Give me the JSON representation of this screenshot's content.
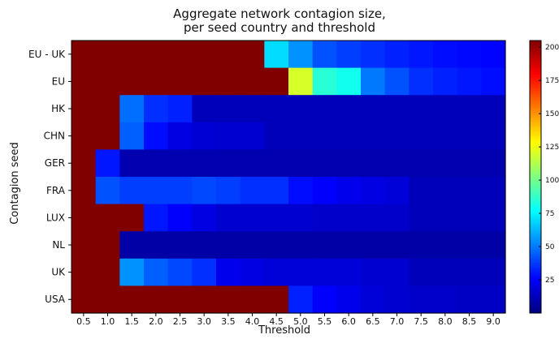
{
  "chart_data": {
    "type": "heatmap",
    "title_line1": "Aggregate network contagion size,",
    "title_line2": "per seed country and threshold",
    "xlabel": "Threshold",
    "ylabel": "Contagion seed",
    "x_tick_labels": [
      "0.5",
      "1.0",
      "1.5",
      "2.0",
      "2.5",
      "3.0",
      "3.5",
      "4.0",
      "4.5",
      "5.0",
      "5.5",
      "6.0",
      "6.5",
      "7.0",
      "7.5",
      "8.0",
      "8.5",
      "9.0"
    ],
    "rows": [
      "EU - UK",
      "EU",
      "HK",
      "CHN",
      "GER",
      "FRA",
      "LUX",
      "NL",
      "UK",
      "USA"
    ],
    "values": [
      [
        205,
        205,
        205,
        205,
        205,
        205,
        205,
        205,
        70,
        55,
        42,
        38,
        35,
        32,
        30,
        28,
        27,
        26
      ],
      [
        205,
        205,
        205,
        205,
        205,
        205,
        205,
        205,
        205,
        120,
        85,
        80,
        50,
        42,
        35,
        32,
        30,
        28
      ],
      [
        205,
        205,
        48,
        35,
        32,
        12,
        12,
        12,
        12,
        12,
        12,
        12,
        12,
        12,
        12,
        12,
        12,
        12
      ],
      [
        205,
        205,
        45,
        28,
        20,
        17,
        16,
        16,
        12,
        12,
        12,
        12,
        12,
        12,
        12,
        12,
        12,
        12
      ],
      [
        205,
        30,
        10,
        10,
        10,
        10,
        10,
        10,
        10,
        10,
        10,
        10,
        10,
        10,
        10,
        10,
        10,
        10
      ],
      [
        205,
        42,
        38,
        38,
        38,
        40,
        38,
        35,
        35,
        28,
        25,
        22,
        20,
        18,
        12,
        12,
        12,
        12
      ],
      [
        205,
        205,
        205,
        30,
        25,
        20,
        16,
        16,
        16,
        16,
        15,
        15,
        15,
        15,
        12,
        12,
        12,
        12
      ],
      [
        205,
        205,
        8,
        8,
        8,
        8,
        8,
        8,
        8,
        8,
        8,
        8,
        8,
        8,
        8,
        8,
        8,
        8
      ],
      [
        205,
        205,
        55,
        45,
        40,
        35,
        22,
        20,
        18,
        18,
        18,
        18,
        16,
        16,
        12,
        12,
        12,
        12
      ],
      [
        205,
        205,
        205,
        205,
        205,
        205,
        205,
        205,
        205,
        32,
        25,
        22,
        18,
        16,
        15,
        15,
        14,
        14
      ]
    ],
    "colorbar": {
      "min": 0,
      "max": 205,
      "ticks": [
        25,
        50,
        75,
        100,
        125,
        150,
        175,
        200
      ],
      "colormap": "jet"
    },
    "grid": false
  }
}
